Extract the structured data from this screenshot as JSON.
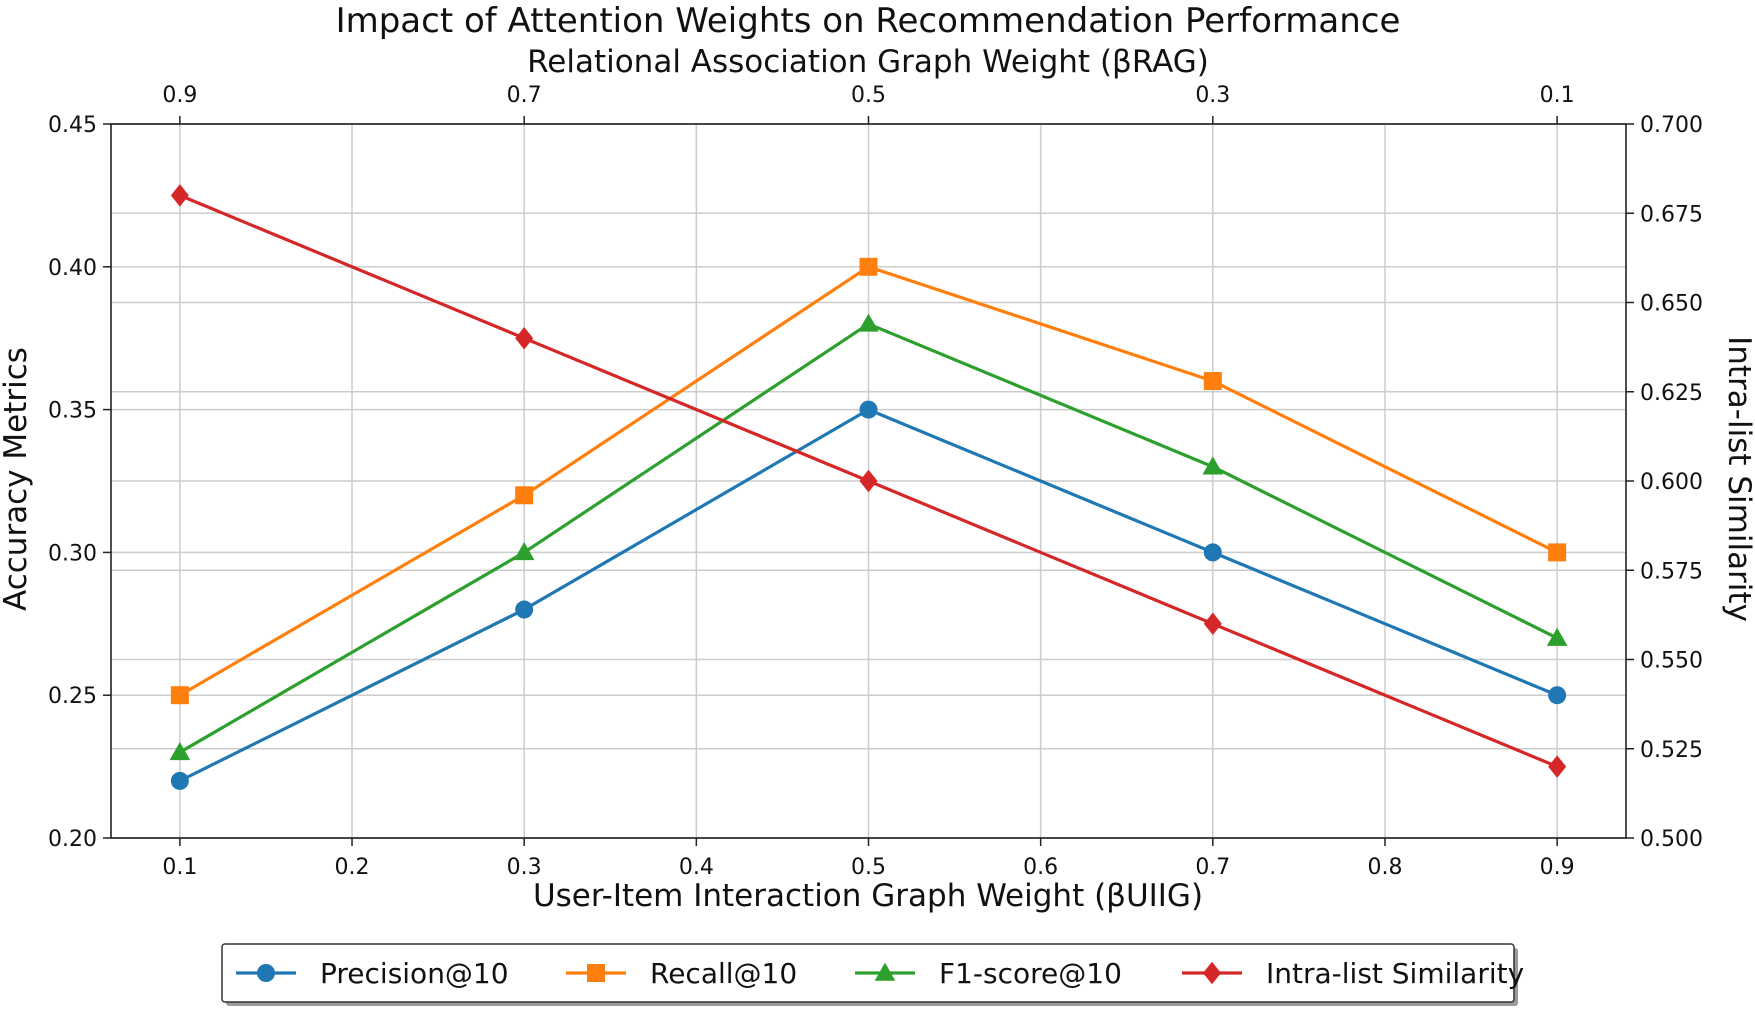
{
  "chart_data": {
    "type": "line",
    "title": "Impact of Attention Weights on Recommendation Performance",
    "xlabel": "User-Item Interaction Graph Weight (βUIIG)",
    "x2label": "Relational Association Graph Weight (βRAG)",
    "ylabel": "Accuracy Metrics",
    "y2label": "Intra-list Similarity",
    "x": [
      0.1,
      0.3,
      0.5,
      0.7,
      0.9
    ],
    "xlim": [
      0.06,
      0.94
    ],
    "xticks": [
      "0.1",
      "0.2",
      "0.3",
      "0.4",
      "0.5",
      "0.6",
      "0.7",
      "0.8",
      "0.9"
    ],
    "x2ticks": [
      "0.9",
      "0.7",
      "0.5",
      "0.3",
      "0.1"
    ],
    "ylim": [
      0.2,
      0.45
    ],
    "yticks": [
      "0.20",
      "0.25",
      "0.30",
      "0.35",
      "0.40",
      "0.45"
    ],
    "y2lim": [
      0.5,
      0.7
    ],
    "y2ticks": [
      "0.500",
      "0.525",
      "0.550",
      "0.575",
      "0.600",
      "0.625",
      "0.650",
      "0.675",
      "0.700"
    ],
    "grid": true,
    "legend_position": "bottom-center",
    "series": [
      {
        "name": "Precision@10",
        "axis": "left",
        "color": "#1f77b4",
        "marker": "circle",
        "values": [
          0.22,
          0.28,
          0.35,
          0.3,
          0.25
        ]
      },
      {
        "name": "Recall@10",
        "axis": "left",
        "color": "#ff7f0e",
        "marker": "square",
        "values": [
          0.25,
          0.32,
          0.4,
          0.36,
          0.3
        ]
      },
      {
        "name": "F1-score@10",
        "axis": "left",
        "color": "#2ca02c",
        "marker": "triangle",
        "values": [
          0.23,
          0.3,
          0.38,
          0.33,
          0.27
        ]
      },
      {
        "name": "Intra-list Similarity",
        "axis": "right",
        "color": "#d62728",
        "marker": "diamond",
        "values": [
          0.68,
          0.64,
          0.6,
          0.56,
          0.52
        ]
      }
    ]
  }
}
